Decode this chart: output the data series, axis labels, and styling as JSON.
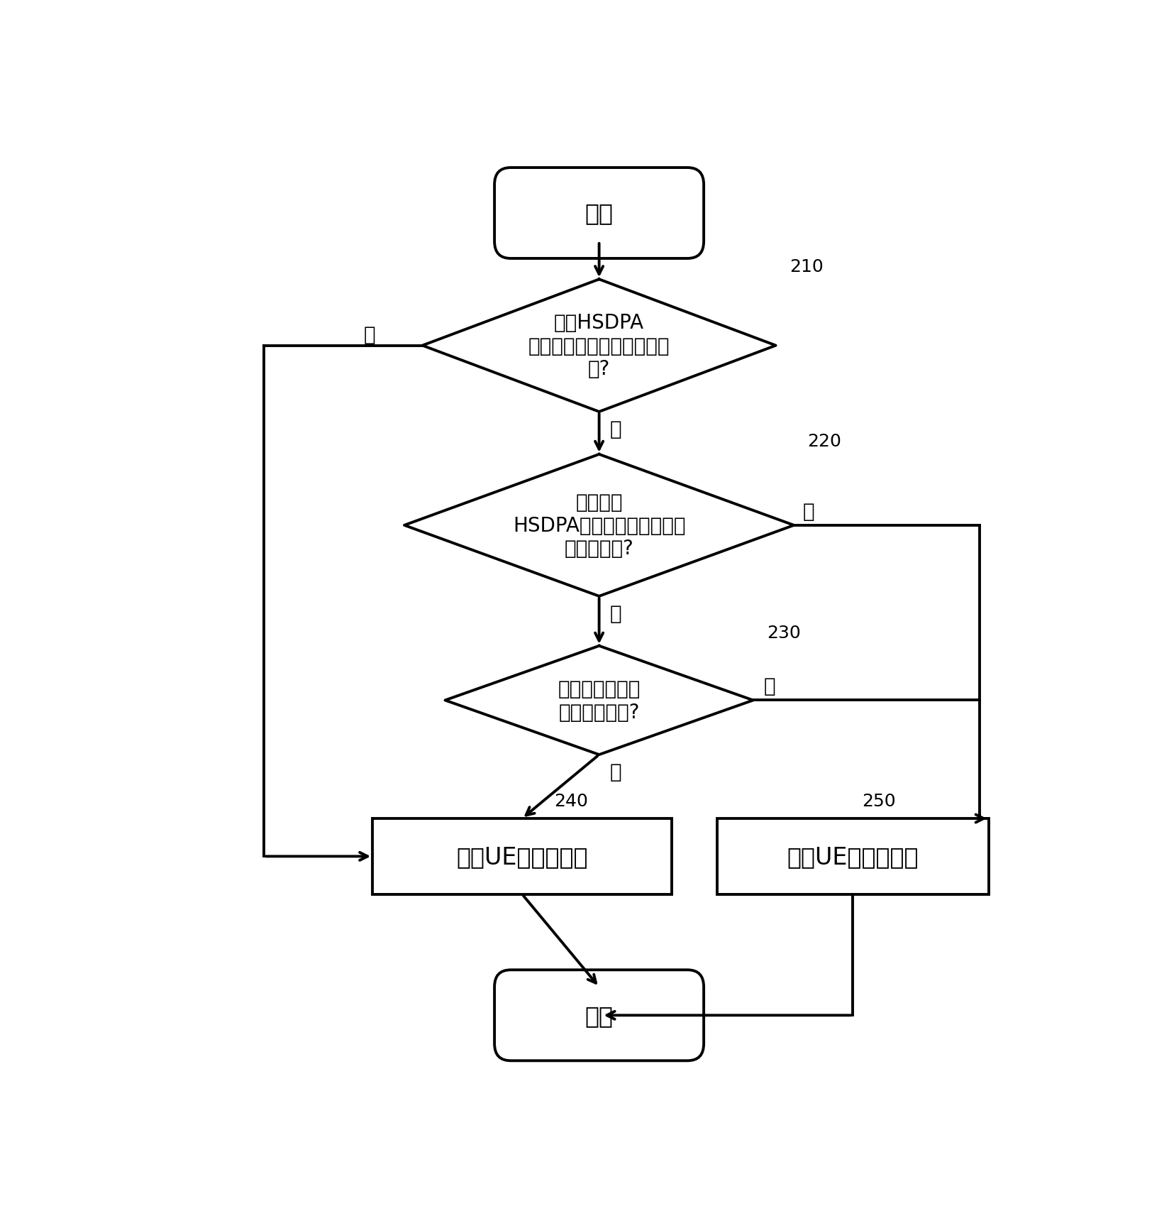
{
  "bg_color": "#ffffff",
  "line_color": "#000000",
  "text_color": "#000000",
  "font_size_main": 24,
  "font_size_label": 20,
  "font_size_ref": 18,
  "start_text": "开始",
  "end_text": "结束",
  "d1_text": "已有HSDPA\n业务的服务质量是否得到满\n足?",
  "d2_text": "当前所有\nHSDPA信道的总发射功率是\n否满足要求?",
  "d3_text": "下行总发射功率\n是否满足要求?",
  "r1_text": "准许UE的接入请求",
  "r2_text": "拒绝UE的接入请求",
  "ref210": "210",
  "ref220": "220",
  "ref230": "230",
  "ref240": "240",
  "ref250": "250",
  "yes": "是",
  "no": "否"
}
